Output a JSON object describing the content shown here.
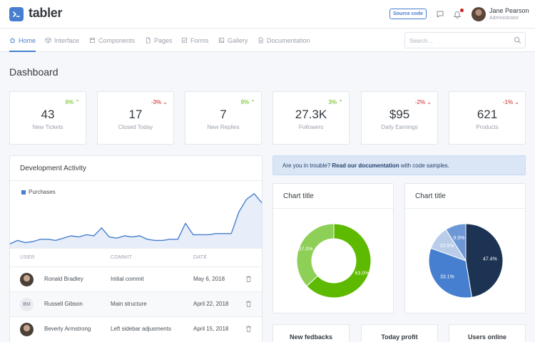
{
  "app": {
    "name": "tabler"
  },
  "header": {
    "source_button": "Source code",
    "user": {
      "name": "Jane Pearson",
      "role": "Administrator"
    }
  },
  "nav": {
    "items": [
      {
        "label": "Home",
        "icon": "home-icon",
        "active": true
      },
      {
        "label": "Interface",
        "icon": "box-icon"
      },
      {
        "label": "Components",
        "icon": "calendar-icon"
      },
      {
        "label": "Pages",
        "icon": "file-icon"
      },
      {
        "label": "Forms",
        "icon": "check-square-icon"
      },
      {
        "label": "Gallery",
        "icon": "image-icon"
      },
      {
        "label": "Documentation",
        "icon": "file-text-icon"
      }
    ],
    "search_placeholder": "Search…"
  },
  "page": {
    "title": "Dashboard"
  },
  "stats": [
    {
      "value": "43",
      "label": "New Tickets",
      "change": "6%",
      "trend": "up"
    },
    {
      "value": "17",
      "label": "Closed Today",
      "change": "-3%",
      "trend": "down"
    },
    {
      "value": "7",
      "label": "New Replies",
      "change": "9%",
      "trend": "up"
    },
    {
      "value": "27.3K",
      "label": "Followers",
      "change": "3%",
      "trend": "up"
    },
    {
      "value": "$95",
      "label": "Daily Earnings",
      "change": "-2%",
      "trend": "down"
    },
    {
      "value": "621",
      "label": "Products",
      "change": "-1%",
      "trend": "down"
    }
  ],
  "activity": {
    "title": "Development Activity",
    "legend": "Purchases",
    "series": [
      3,
      6,
      4,
      5,
      7,
      7,
      6,
      8,
      10,
      9,
      11,
      10,
      17,
      9,
      8,
      10,
      9,
      10,
      7,
      6,
      6,
      7,
      7,
      21,
      11,
      11,
      11,
      12,
      12,
      12,
      31,
      42,
      47,
      39
    ],
    "columns": [
      "USER",
      "COMMIT",
      "DATE"
    ],
    "rows": [
      {
        "user": "Ronald Bradley",
        "commit": "Initial commit",
        "date": "May 6, 2018",
        "avatar": "photo"
      },
      {
        "user": "Russell Gibson",
        "commit": "Main structure",
        "date": "April 22, 2018",
        "avatar": "initials",
        "initials": "BM"
      },
      {
        "user": "Beverly Armstrong",
        "commit": "Left sidebar adjusments",
        "date": "April 15, 2018",
        "avatar": "photo"
      }
    ]
  },
  "alert": {
    "prefix": "Are you in trouble?",
    "link": "Read our documentation",
    "suffix": "with code samples."
  },
  "chart_data": [
    {
      "type": "pie",
      "variant": "donut",
      "title": "Chart title",
      "labels": [
        "37.0%",
        "63.0%"
      ],
      "values": [
        37.0,
        63.0
      ],
      "colors": [
        "#8ed057",
        "#5eba00"
      ]
    },
    {
      "type": "pie",
      "title": "Chart title",
      "labels": [
        "47.4%",
        "33.1%",
        "10.5%",
        "9.0%"
      ],
      "values": [
        47.4,
        33.1,
        10.5,
        9.0
      ],
      "colors": [
        "#1c3353",
        "#467fcf",
        "#b9cdea",
        "#6e97d6"
      ]
    }
  ],
  "bottom_cards": [
    {
      "title": "New fedbacks"
    },
    {
      "title": "Today profit"
    },
    {
      "title": "Users online"
    }
  ],
  "colors": {
    "primary": "#467fcf",
    "success": "#5eba00",
    "danger": "#cd201f"
  }
}
